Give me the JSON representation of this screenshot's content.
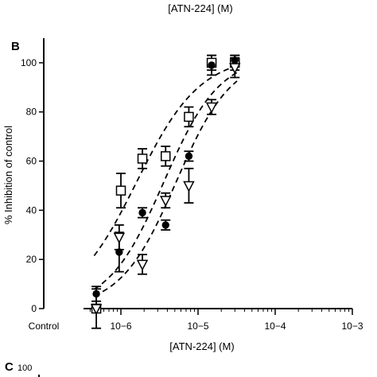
{
  "header_caption": "[ATN-224] (M)",
  "panel_b_label": "B",
  "panel_c_label": "C",
  "panel_c_partial_tick": "100",
  "chart_data": {
    "type": "scatter",
    "panel": "B",
    "xlabel": "[ATN-224] (M)",
    "ylabel": "% Inhibition of control",
    "x_scale": "log",
    "x_control_label": "Control",
    "xlim": [
      1e-07,
      0.001
    ],
    "ylim": [
      0,
      110
    ],
    "y_ticks": [
      0,
      20,
      40,
      60,
      80,
      100
    ],
    "x_ticks": [
      {
        "value": 1e-06,
        "label": "10−6"
      },
      {
        "value": 1e-05,
        "label": "10−5"
      },
      {
        "value": 0.0001,
        "label": "10−4"
      },
      {
        "value": 0.001,
        "label": "10−3"
      }
    ],
    "grid": false,
    "legend": "none",
    "series": [
      {
        "marker": "open-square",
        "fit": {
          "ic50": 1.6e-06,
          "hill": 1.05,
          "bottom": 0,
          "top": 103
        },
        "points": [
          {
            "x": 4.8e-07,
            "y": 0,
            "err": 0
          },
          {
            "x": 1e-06,
            "y": 48,
            "err": 7
          },
          {
            "x": 1.9e-06,
            "y": 61,
            "err": 4
          },
          {
            "x": 3.8e-06,
            "y": 62,
            "err": 4
          },
          {
            "x": 7.6e-06,
            "y": 78,
            "err": 4
          },
          {
            "x": 1.5e-05,
            "y": 100,
            "err": 3
          },
          {
            "x": 3e-05,
            "y": 100,
            "err": 3
          }
        ]
      },
      {
        "marker": "filled-circle",
        "fit": {
          "ic50": 3.6e-06,
          "hill": 1.2,
          "bottom": 0,
          "top": 103
        },
        "points": [
          {
            "x": 4.8e-07,
            "y": 6,
            "err": 3
          },
          {
            "x": 9.5e-07,
            "y": 23,
            "err": 8
          },
          {
            "x": 1.9e-06,
            "y": 39,
            "err": 2
          },
          {
            "x": 3.8e-06,
            "y": 34,
            "err": 2
          },
          {
            "x": 7.6e-06,
            "y": 62,
            "err": 2
          },
          {
            "x": 1.5e-05,
            "y": 99,
            "err": 4
          },
          {
            "x": 3e-05,
            "y": 101,
            "err": 2
          }
        ]
      },
      {
        "marker": "open-triangle-down",
        "fit": {
          "ic50": 5.2e-06,
          "hill": 1.2,
          "bottom": 0,
          "top": 103
        },
        "points": [
          {
            "x": 4.8e-07,
            "y": 0,
            "err": 8
          },
          {
            "x": 9.5e-07,
            "y": 29,
            "err": 5
          },
          {
            "x": 1.9e-06,
            "y": 18,
            "err": 4
          },
          {
            "x": 3.8e-06,
            "y": 44,
            "err": 3
          },
          {
            "x": 7.6e-06,
            "y": 50,
            "err": 7
          },
          {
            "x": 1.5e-05,
            "y": 82,
            "err": 3
          },
          {
            "x": 3e-05,
            "y": 98,
            "err": 4
          }
        ]
      }
    ]
  }
}
